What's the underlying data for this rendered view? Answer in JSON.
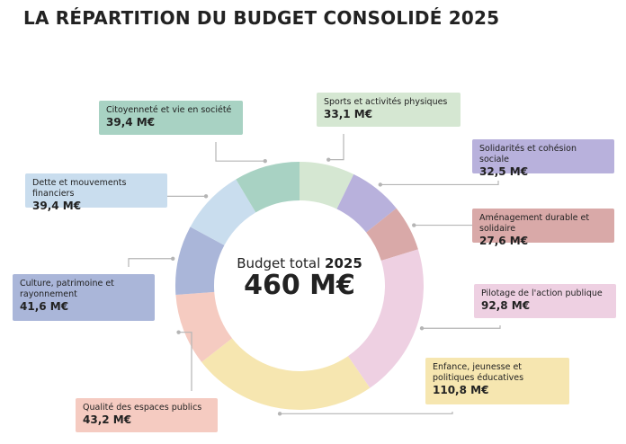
{
  "chart_data": {
    "type": "donut",
    "title": "LA RÉPARTITION DU BUDGET CONSOLIDÉ 2025",
    "center_label": "Budget total",
    "center_year": "2025",
    "center_total": "460 M€",
    "categories": [
      "Sports et activités physiques",
      "Solidarités et cohésion sociale",
      "Aménagement durable et solidaire",
      "Pilotage de l'action publique",
      "Enfance, jeunesse et politiques éducatives",
      "Qualité des espaces publics",
      "Culture, patrimoine et rayonnement",
      "Dette et mouvements financiers",
      "Citoyenneté et vie en société"
    ],
    "values": [
      33.1,
      32.5,
      27.6,
      92.8,
      110.8,
      43.2,
      41.6,
      39.4,
      39.4
    ],
    "value_labels": [
      "33,1 M€",
      "32,5 M€",
      "27,6 M€",
      "92,8 M€",
      "110,8 M€",
      "43,2 M€",
      "41,6 M€",
      "39,4 M€",
      "39,4 M€"
    ],
    "colors": [
      "#d5e7d2",
      "#b8b1dc",
      "#d9a9a8",
      "#eed0e2",
      "#f6e6b0",
      "#f5cbc1",
      "#aab6d9",
      "#c9ddee",
      "#a8d2c3"
    ]
  }
}
